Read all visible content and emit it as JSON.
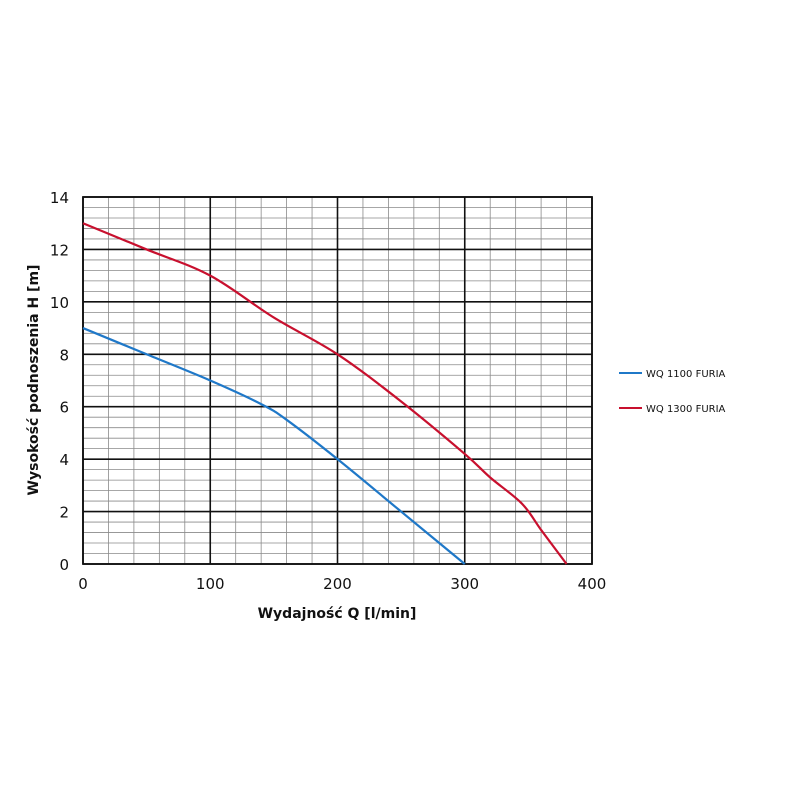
{
  "chart_data": {
    "type": "line",
    "xlabel": "Wydajność Q [l/min]",
    "ylabel": "Wysokość podnoszenia H [m]",
    "xlim": [
      0,
      400
    ],
    "ylim": [
      0,
      14
    ],
    "x_ticks": [
      0,
      100,
      200,
      300,
      400
    ],
    "y_ticks": [
      0,
      2,
      4,
      6,
      8,
      10,
      12,
      14
    ],
    "grid": true,
    "legend_position": "right",
    "series": [
      {
        "name": "WQ 1100 FURIA",
        "color": "#1f78c8",
        "points": [
          [
            0,
            9
          ],
          [
            50,
            8
          ],
          [
            100,
            7
          ],
          [
            140,
            6.1
          ],
          [
            160,
            5.5
          ],
          [
            200,
            4
          ],
          [
            250,
            2
          ],
          [
            300,
            0
          ]
        ]
      },
      {
        "name": "WQ 1300 FURIA",
        "color": "#c8102e",
        "points": [
          [
            0,
            13
          ],
          [
            50,
            12
          ],
          [
            100,
            11
          ],
          [
            150,
            9.4
          ],
          [
            200,
            8
          ],
          [
            250,
            6.2
          ],
          [
            300,
            4.2
          ],
          [
            320,
            3.3
          ],
          [
            345,
            2.3
          ],
          [
            360,
            1.3
          ],
          [
            380,
            0
          ]
        ]
      }
    ]
  }
}
